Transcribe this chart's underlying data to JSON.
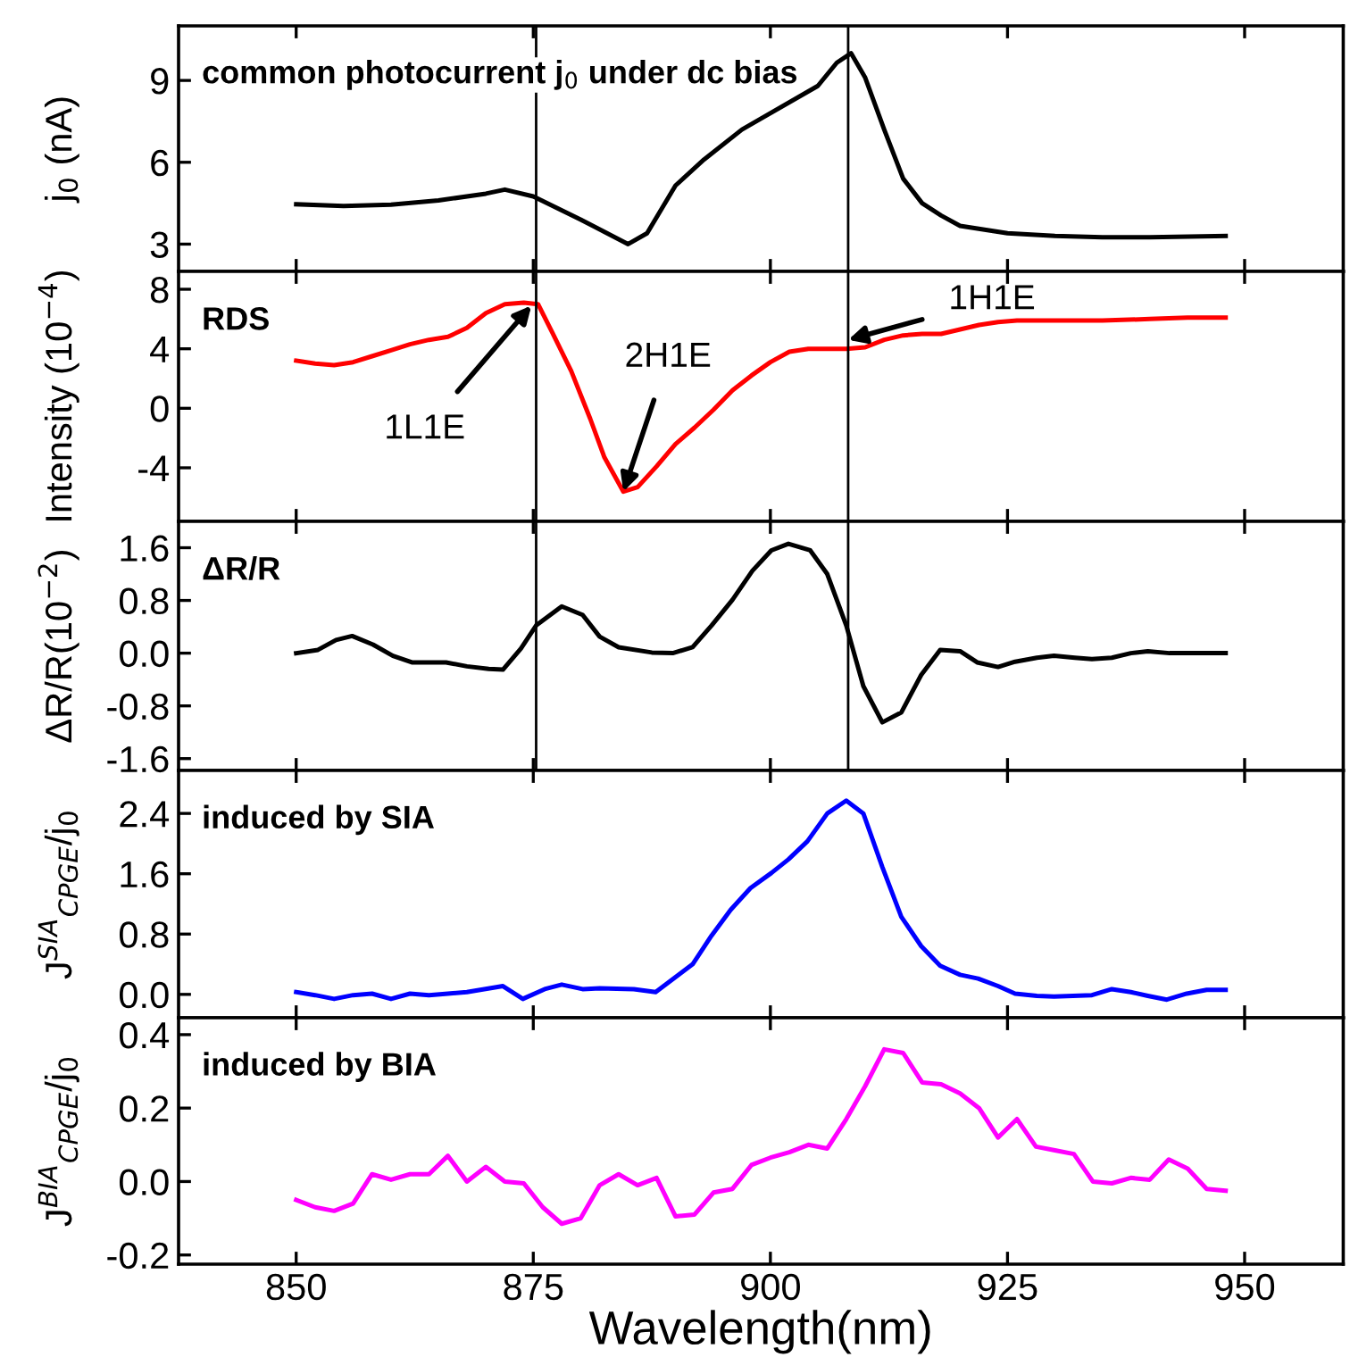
{
  "chart_data": [
    {
      "type": "line",
      "ylabel": "j$_{0}$ (nA)",
      "annotations": [
        "common photocurrent j$_{0}$ under dc bias"
      ],
      "x": [
        850,
        855,
        860,
        865,
        870,
        872,
        875,
        880,
        885,
        887,
        890,
        893,
        897,
        899,
        905,
        907,
        908.5,
        910,
        912,
        914,
        916,
        918,
        920,
        925,
        930,
        935,
        940,
        948
      ],
      "series": [
        {
          "color": "#000000",
          "values": [
            4.46,
            4.4,
            4.45,
            4.6,
            4.85,
            5.0,
            4.75,
            3.9,
            3.0,
            3.4,
            5.15,
            6.1,
            7.2,
            7.6,
            8.8,
            9.65,
            10.0,
            9.1,
            7.2,
            5.4,
            4.5,
            4.05,
            3.67,
            3.4,
            3.3,
            3.25,
            3.25,
            3.3
          ]
        }
      ],
      "xlim": [
        837.6,
        960.4
      ],
      "xticks": [
        850,
        875,
        900,
        925,
        950
      ],
      "ylim": [
        2.0,
        11.0
      ],
      "yticks": [
        3,
        6,
        9
      ],
      "tick_labels": "y",
      "ref_lines": [
        {
          "axis": "x",
          "value": 875.3,
          "color": "#000000"
        },
        {
          "axis": "x",
          "value": 908.2,
          "color": "#000000"
        }
      ]
    },
    {
      "type": "line",
      "ylabel": "Intensity (10$^{−4}$)",
      "annotations": [
        "RDS",
        {
          "text": "1L1E",
          "x": 874.8,
          "y": 6.9
        },
        {
          "text": "2H1E",
          "x": 884.5,
          "y": -5.6
        },
        {
          "text": "1H1E",
          "x": 908.2,
          "y": 4.6
        }
      ],
      "x": [
        850,
        852,
        854,
        856,
        858,
        860,
        862,
        864,
        866,
        868,
        870,
        872,
        874,
        875.5,
        877,
        879,
        881,
        882.5,
        884.5,
        886,
        888,
        890,
        892,
        894,
        896,
        898,
        900,
        902,
        904,
        906,
        908,
        910,
        912,
        914,
        916,
        918,
        920,
        922,
        924,
        926,
        930,
        935,
        940,
        944,
        948
      ],
      "series": [
        {
          "color": "#ff0000",
          "values": [
            3.2,
            3.0,
            2.9,
            3.1,
            3.5,
            3.9,
            4.3,
            4.6,
            4.8,
            5.4,
            6.4,
            7.0,
            7.1,
            7.0,
            5.1,
            2.5,
            -0.7,
            -3.3,
            -5.6,
            -5.3,
            -3.9,
            -2.4,
            -1.3,
            -0.1,
            1.2,
            2.2,
            3.1,
            3.8,
            4.0,
            4.0,
            4.0,
            4.1,
            4.6,
            4.9,
            5.0,
            5.0,
            5.3,
            5.6,
            5.8,
            5.9,
            5.9,
            5.9,
            6.0,
            6.1,
            6.1
          ]
        }
      ],
      "xlim": [
        837.6,
        960.4
      ],
      "xticks": [
        850,
        875,
        900,
        925,
        950
      ],
      "ylim": [
        -7.6,
        9.2
      ],
      "yticks": [
        -4,
        0,
        4,
        8
      ],
      "tick_labels": "y",
      "ref_lines": [
        {
          "axis": "x",
          "value": 875.3,
          "color": "#000000"
        },
        {
          "axis": "x",
          "value": 908.2,
          "color": "#000000"
        }
      ]
    },
    {
      "type": "line",
      "ylabel": "ΔR/R(10$^{−2}$)",
      "annotations": [
        "ΔR/R"
      ],
      "x": [
        850,
        852.3,
        854.2,
        855.9,
        858.1,
        860.2,
        862.2,
        865.8,
        868,
        870.3,
        871.8,
        873.7,
        875.3,
        878,
        880.2,
        882,
        884,
        887.5,
        889.7,
        891.8,
        893.8,
        896,
        898.1,
        900.1,
        901.9,
        904.2,
        906,
        908,
        909.8,
        911.8,
        913.8,
        915.9,
        917.9,
        920,
        921.8,
        924,
        925.8,
        928.1,
        929.9,
        932.1,
        933.9,
        936,
        938,
        939.8,
        942.1,
        948
      ],
      "series": [
        {
          "color": "#000000",
          "values": [
            0,
            0.05,
            0.2,
            0.26,
            0.13,
            -0.04,
            -0.14,
            -0.14,
            -0.2,
            -0.24,
            -0.25,
            0.07,
            0.42,
            0.71,
            0.58,
            0.25,
            0.09,
            0.01,
            0,
            0.09,
            0.42,
            0.81,
            1.25,
            1.56,
            1.66,
            1.56,
            1.2,
            0.42,
            -0.5,
            -1.05,
            -0.9,
            -0.33,
            0.05,
            0.03,
            -0.14,
            -0.21,
            -0.13,
            -0.07,
            -0.04,
            -0.07,
            -0.09,
            -0.07,
            0,
            0.03,
            0,
            0
          ]
        }
      ],
      "xlim": [
        837.6,
        960.4
      ],
      "xticks": [
        850,
        875,
        900,
        925,
        950
      ],
      "ylim": [
        -1.78,
        2.0
      ],
      "tick_labels": "y",
      "yticks": [
        {
          "value": -1.6,
          "label": "-1.6"
        },
        {
          "value": -0.8,
          "label": "-0.8"
        },
        {
          "value": 0,
          "label": "0.0"
        },
        {
          "value": 0.8,
          "label": "0.8"
        },
        {
          "value": 1.6,
          "label": "1.6"
        }
      ],
      "ref_lines": [
        {
          "axis": "x",
          "value": 875.3,
          "color": "#000000"
        },
        {
          "axis": "x",
          "value": 908.2,
          "color": "#000000"
        }
      ]
    },
    {
      "type": "line",
      "ylabel": "J$^{SIA}$$_{CPGE}$/j$_{0}$",
      "annotations": [
        "induced by SIA"
      ],
      "x": [
        850,
        852,
        854,
        856,
        858,
        860,
        862,
        864,
        866,
        868,
        871.8,
        873.9,
        876.2,
        878,
        880.2,
        882,
        885.6,
        887.9,
        891.8,
        893.8,
        895.8,
        897.9,
        900.1,
        901.9,
        903.9,
        906,
        908,
        909.8,
        911.8,
        913.8,
        915.9,
        917.9,
        920,
        921.9,
        924,
        925.8,
        928.1,
        929.9,
        933.9,
        936,
        938,
        939.8,
        941.8,
        943.9,
        946,
        948
      ],
      "series": [
        {
          "color": "#0000ff",
          "values": [
            0.03,
            -0.01,
            -0.06,
            -0.01,
            0.01,
            -0.06,
            0.01,
            -0.01,
            0.01,
            0.03,
            0.11,
            -0.06,
            0.07,
            0.13,
            0.07,
            0.08,
            0.07,
            0.03,
            0.4,
            0.78,
            1.12,
            1.41,
            1.61,
            1.79,
            2.03,
            2.4,
            2.57,
            2.4,
            1.69,
            1.03,
            0.64,
            0.38,
            0.26,
            0.21,
            0.11,
            0.01,
            -0.02,
            -0.03,
            -0.01,
            0.07,
            0.03,
            -0.02,
            -0.07,
            0.01,
            0.06,
            0.06
          ]
        }
      ],
      "xlim": [
        837.6,
        960.4
      ],
      "xticks": [
        850,
        875,
        900,
        925,
        950
      ],
      "ylim": [
        -0.31,
        2.97
      ],
      "tick_labels": "y",
      "yticks": [
        {
          "value": 0,
          "label": "0.0"
        },
        {
          "value": 0.8,
          "label": "0.8"
        },
        {
          "value": 1.6,
          "label": "1.6"
        },
        {
          "value": 2.4,
          "label": "2.4"
        }
      ]
    },
    {
      "type": "line",
      "ylabel": "J$^{BIA}$$_{CPGE}$/j$_{0}$",
      "xlabel": "Wavelength(nm)",
      "annotations": [
        "induced by BIA"
      ],
      "x": [
        850,
        852,
        854,
        856,
        858,
        860,
        862,
        864,
        866,
        868,
        870,
        872,
        874,
        876,
        878,
        880,
        882,
        884,
        886,
        888,
        890,
        892,
        894,
        896,
        898,
        900,
        902,
        904,
        906,
        908,
        910,
        912,
        914,
        916,
        918,
        920,
        922,
        924,
        926,
        928,
        930,
        932,
        934,
        936,
        938,
        940,
        942,
        944,
        946,
        948
      ],
      "series": [
        {
          "color": "#ff00ff",
          "values": [
            -0.05,
            -0.07,
            -0.08,
            -0.06,
            0.02,
            0.005,
            0.02,
            0.02,
            0.07,
            0,
            0.04,
            0,
            -0.005,
            -0.07,
            -0.115,
            -0.1,
            -0.01,
            0.02,
            -0.01,
            0.01,
            -0.095,
            -0.09,
            -0.03,
            -0.02,
            0.045,
            0.065,
            0.08,
            0.1,
            0.09,
            0.17,
            0.26,
            0.36,
            0.35,
            0.27,
            0.265,
            0.24,
            0.2,
            0.12,
            0.17,
            0.095,
            0.085,
            0.075,
            0,
            -0.005,
            0.01,
            0.005,
            0.06,
            0.035,
            -0.02,
            -0.025
          ]
        }
      ],
      "xlim": [
        837.6,
        960.4
      ],
      "xticks": [
        850,
        875,
        900,
        925,
        950
      ],
      "ylim": [
        -0.225,
        0.446
      ],
      "yticks": [
        {
          "value": -0.2,
          "label": "-0.2"
        },
        {
          "value": 0,
          "label": "0.0"
        },
        {
          "value": 0.2,
          "label": "0.2"
        },
        {
          "value": 0.4,
          "label": "0.4"
        }
      ]
    }
  ]
}
